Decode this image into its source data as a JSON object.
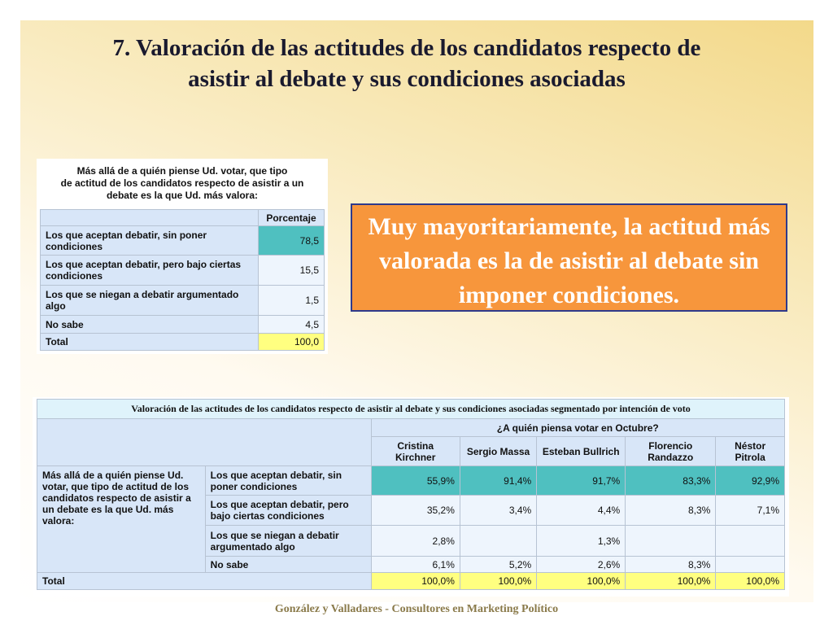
{
  "title_lines": [
    "7. Valoración de las actitudes de los candidatos respecto de",
    "asistir al debate y sus condiciones asociadas"
  ],
  "summary_table": {
    "caption_lines": [
      "Más allá de a quién piense Ud. votar, que tipo",
      "de actitud de los candidatos respecto de asistir a un",
      "debate es la que Ud. más valora:"
    ],
    "column_header": "Porcentaje",
    "rows": [
      [
        "Los que aceptan debatir, sin poner condiciones",
        "78,5"
      ],
      [
        "Los que aceptan debatir, pero bajo ciertas condiciones",
        "15,5"
      ],
      [
        "Los que se niegan a debatir argumentado algo",
        "1,5"
      ],
      [
        "No sabe",
        "4,5"
      ],
      [
        "Total",
        "100,0"
      ]
    ]
  },
  "callout": "Muy mayoritariamente, la actitud más valorada es la de asistir al debate sin imponer condiciones.",
  "segment_table": {
    "title": "Valoración de las actitudes de los candidatos respecto de asistir al debate y sus condiciones asociadas segmentado por intención de voto",
    "group_header": "¿A quién piensa votar en Octubre?",
    "columns": [
      "Cristina Kirchner",
      "Sergio Massa",
      "Esteban Bullrich",
      "Florencio Randazzo",
      "Néstor Pitrola"
    ],
    "row_header": "Más allá de a quién piense Ud. votar, que tipo de actitud de los candidatos respecto de asistir a un debate es la que Ud. más valora:",
    "rows": [
      {
        "label": "Los que aceptan debatir, sin poner condiciones",
        "values": [
          "55,9%",
          "91,4%",
          "91,7%",
          "83,3%",
          "92,9%"
        ]
      },
      {
        "label": "Los que aceptan debatir, pero bajo ciertas condiciones",
        "values": [
          "35,2%",
          "3,4%",
          "4,4%",
          "8,3%",
          "7,1%"
        ]
      },
      {
        "label": "Los que se niegan a debatir argumentado algo",
        "values": [
          "2,8%",
          null,
          "1,3%",
          null,
          null
        ]
      },
      {
        "label": "No sabe",
        "values": [
          "6,1%",
          "5,2%",
          "2,6%",
          "8,3%",
          null
        ]
      }
    ],
    "total": {
      "label": "Total",
      "values": [
        "100,0%",
        "100,0%",
        "100,0%",
        "100,0%",
        "100,0%"
      ]
    }
  },
  "footer": "González y Valladares - Consultores en Marketing Político"
}
